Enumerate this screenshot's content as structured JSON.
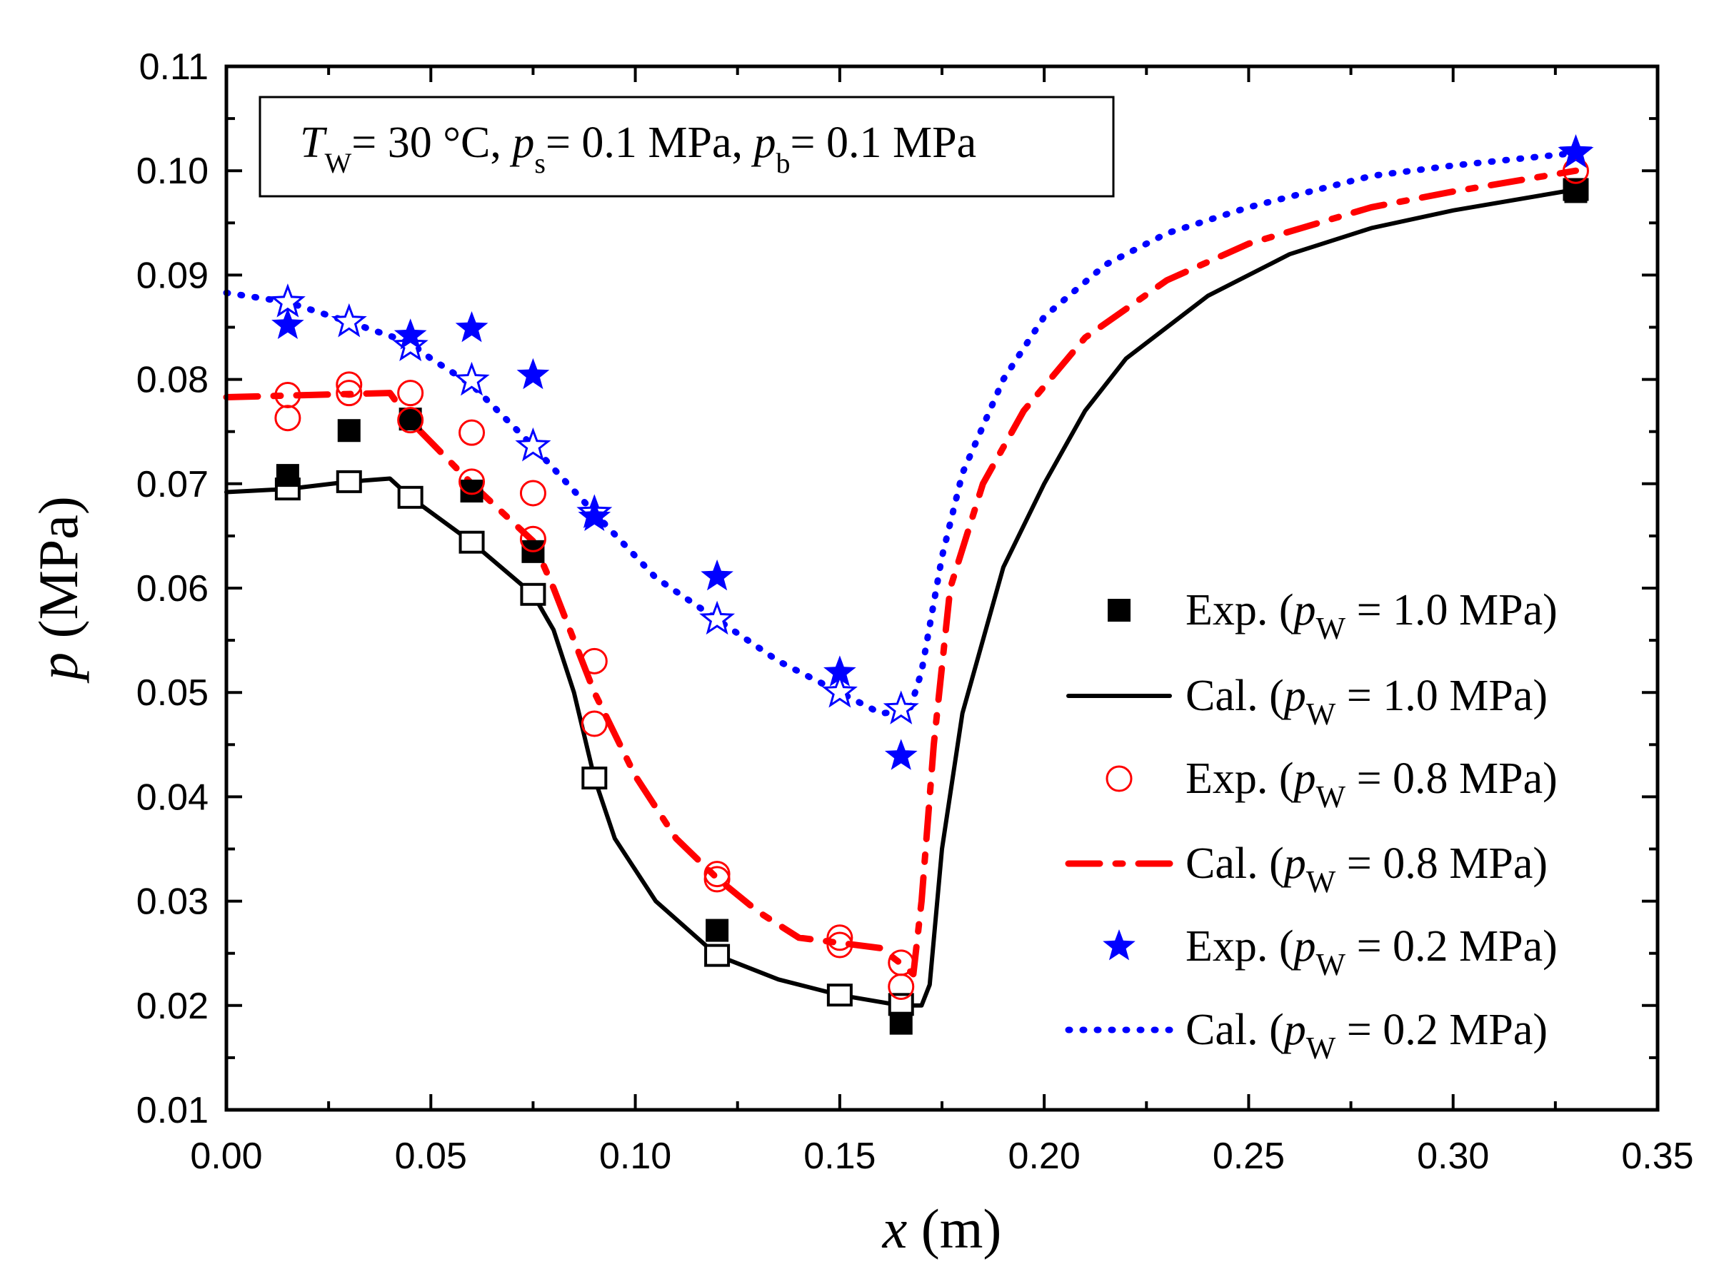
{
  "chart_data": {
    "type": "line",
    "xlabel": {
      "var": "x",
      "unit": " (m)"
    },
    "ylabel": {
      "var": "p",
      "unit": " (MPa)"
    },
    "xlim": [
      0,
      0.35
    ],
    "ylim": [
      0.01,
      0.11
    ],
    "xticks": [
      "0.00",
      "0.05",
      "0.10",
      "0.15",
      "0.20",
      "0.25",
      "0.30",
      "0.35"
    ],
    "yticks": [
      "0.01",
      "0.02",
      "0.03",
      "0.04",
      "0.05",
      "0.06",
      "0.07",
      "0.08",
      "0.09",
      "0.10",
      "0.11"
    ],
    "grid": false,
    "annotation": [
      {
        "text": "T",
        "italic": true
      },
      {
        "text": "W",
        "sub": true
      },
      {
        "text": "= 30 °C, "
      },
      {
        "text": "p",
        "italic": true
      },
      {
        "text": "s",
        "sub": true
      },
      {
        "text": "= 0.1 MPa, "
      },
      {
        "text": "p",
        "italic": true
      },
      {
        "text": "b",
        "sub": true
      },
      {
        "text": "= 0.1 MPa"
      }
    ],
    "legend_position": "right",
    "series": [
      {
        "name": "Exp. (pW = 1.0 MPa)",
        "prefix": "Exp. (",
        "var": "p",
        "sub": "W",
        "suffix": " = 1.0 MPa)",
        "kind": "marker",
        "marker": "square-filled",
        "color": "#000000",
        "x": [
          0.015,
          0.03,
          0.045,
          0.06,
          0.075,
          0.12,
          0.165,
          0.33
        ],
        "y": [
          0.0708,
          0.0751,
          0.0762,
          0.0693,
          0.0635,
          0.0272,
          0.0183,
          0.098
        ]
      },
      {
        "name": "Cal. (pW = 1.0 MPa)",
        "prefix": "Cal. (",
        "var": "p",
        "sub": "W",
        "suffix": " = 1.0 MPa)",
        "kind": "line",
        "dash": "solid",
        "color": "#000000",
        "x": [
          0,
          0.015,
          0.03,
          0.04,
          0.045,
          0.06,
          0.075,
          0.08,
          0.085,
          0.09,
          0.095,
          0.105,
          0.12,
          0.135,
          0.15,
          0.165,
          0.17,
          0.172,
          0.175,
          0.18,
          0.19,
          0.2,
          0.21,
          0.22,
          0.24,
          0.26,
          0.28,
          0.3,
          0.33
        ],
        "y": [
          0.0692,
          0.0695,
          0.0702,
          0.0705,
          0.0687,
          0.0644,
          0.0594,
          0.056,
          0.05,
          0.0418,
          0.036,
          0.03,
          0.0248,
          0.0225,
          0.021,
          0.02,
          0.02,
          0.022,
          0.035,
          0.048,
          0.062,
          0.07,
          0.077,
          0.082,
          0.088,
          0.092,
          0.0945,
          0.0962,
          0.0982
        ],
        "marker_points": {
          "marker": "square-open",
          "x": [
            0.015,
            0.03,
            0.045,
            0.06,
            0.075,
            0.09,
            0.12,
            0.15,
            0.165,
            0.33
          ],
          "y": [
            0.0695,
            0.0702,
            0.0687,
            0.0644,
            0.0594,
            0.0418,
            0.0248,
            0.021,
            0.0201,
            0.0982
          ]
        }
      },
      {
        "name": "Exp. (pW = 0.8 MPa)",
        "prefix": "Exp. (",
        "var": "p",
        "sub": "W",
        "suffix": " = 0.8 MPa)",
        "kind": "marker",
        "marker": "circle-open",
        "color": "#ff0000",
        "x": [
          0.015,
          0.015,
          0.03,
          0.03,
          0.045,
          0.045,
          0.06,
          0.06,
          0.075,
          0.075,
          0.09,
          0.09,
          0.12,
          0.12,
          0.15,
          0.15,
          0.165,
          0.165,
          0.33
        ],
        "y": [
          0.0785,
          0.0763,
          0.0795,
          0.0787,
          0.0787,
          0.0761,
          0.0749,
          0.0702,
          0.0691,
          0.0647,
          0.053,
          0.047,
          0.0326,
          0.0321,
          0.0265,
          0.0258,
          0.0241,
          0.0218,
          0.1
        ]
      },
      {
        "name": "Cal. (pW = 0.8 MPa)",
        "prefix": "Cal. (",
        "var": "p",
        "sub": "W",
        "suffix": " = 0.8 MPa)",
        "kind": "line",
        "dash": "dash-dot",
        "color": "#ff0000",
        "x": [
          0,
          0.02,
          0.04,
          0.045,
          0.06,
          0.075,
          0.08,
          0.09,
          0.1,
          0.11,
          0.12,
          0.13,
          0.14,
          0.15,
          0.16,
          0.165,
          0.168,
          0.17,
          0.173,
          0.177,
          0.185,
          0.195,
          0.21,
          0.23,
          0.25,
          0.28,
          0.3,
          0.33
        ],
        "y": [
          0.0783,
          0.0785,
          0.0787,
          0.076,
          0.07,
          0.0645,
          0.06,
          0.05,
          0.042,
          0.036,
          0.0322,
          0.029,
          0.0265,
          0.026,
          0.0255,
          0.024,
          0.023,
          0.03,
          0.045,
          0.06,
          0.07,
          0.077,
          0.084,
          0.0895,
          0.093,
          0.0965,
          0.098,
          0.1
        ]
      },
      {
        "name": "Exp. (pW = 0.2 MPa)",
        "prefix": "Exp. (",
        "var": "p",
        "sub": "W",
        "suffix": " = 0.2 MPa)",
        "kind": "marker",
        "marker": "star-filled",
        "color": "#0000ff",
        "x": [
          0.015,
          0.045,
          0.06,
          0.075,
          0.09,
          0.12,
          0.15,
          0.165,
          0.33
        ],
        "y": [
          0.0852,
          0.0842,
          0.0849,
          0.0804,
          0.0668,
          0.0611,
          0.0519,
          0.0439,
          0.1018
        ]
      },
      {
        "name": "Cal. (pW = 0.2 MPa)",
        "prefix": "Cal. (",
        "var": "p",
        "sub": "W",
        "suffix": " = 0.2 MPa)",
        "kind": "line",
        "dash": "dot",
        "color": "#0000ff",
        "x": [
          0,
          0.015,
          0.03,
          0.045,
          0.05,
          0.06,
          0.075,
          0.09,
          0.105,
          0.12,
          0.135,
          0.15,
          0.16,
          0.167,
          0.17,
          0.175,
          0.18,
          0.19,
          0.2,
          0.215,
          0.23,
          0.25,
          0.28,
          0.3,
          0.33
        ],
        "y": [
          0.0883,
          0.0874,
          0.0855,
          0.0835,
          0.082,
          0.0795,
          0.0736,
          0.0672,
          0.061,
          0.057,
          0.053,
          0.05,
          0.048,
          0.0482,
          0.052,
          0.063,
          0.071,
          0.08,
          0.086,
          0.091,
          0.094,
          0.0965,
          0.0995,
          0.1005,
          0.1017
        ],
        "marker_points": {
          "marker": "star-open",
          "x": [
            0.015,
            0.03,
            0.045,
            0.06,
            0.075,
            0.09,
            0.12,
            0.15,
            0.165,
            0.33
          ],
          "y": [
            0.0874,
            0.0855,
            0.0832,
            0.0799,
            0.0736,
            0.0672,
            0.057,
            0.05,
            0.0484,
            0.1017
          ]
        }
      }
    ]
  }
}
